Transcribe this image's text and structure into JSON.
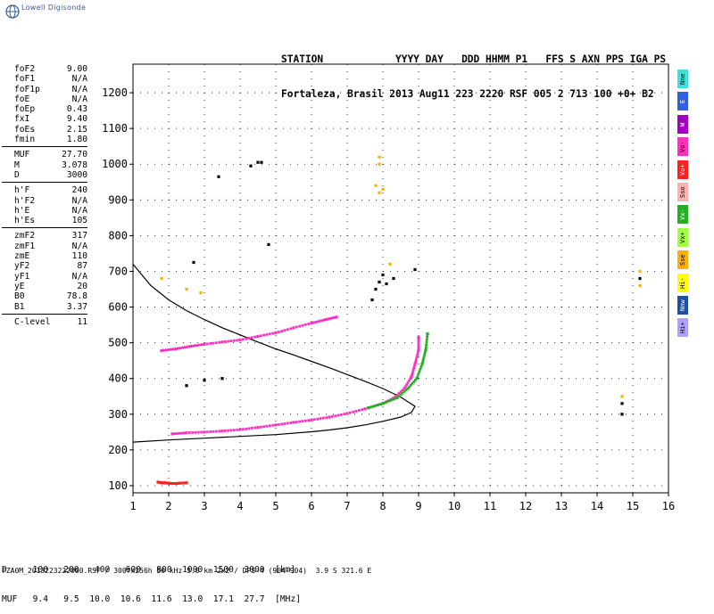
{
  "logo": {
    "brand": "Lowell Digisonde"
  },
  "header": {
    "line1": "STATION            YYYY DAY   DDD HHMM P1   FFS S AXN PPS IGA PS",
    "line2": "Fortaleza, Brasil 2013 Aug11 223 2220 RSF 005 2 713 100 +0+ B2"
  },
  "params": [
    {
      "name": "foF2",
      "value": "9.00"
    },
    {
      "name": "foF1",
      "value": "N/A"
    },
    {
      "name": "foF1p",
      "value": "N/A"
    },
    {
      "name": "foE",
      "value": "N/A"
    },
    {
      "name": "foEp",
      "value": "0.43"
    },
    {
      "name": "fxI",
      "value": "9.40"
    },
    {
      "name": "foEs",
      "value": "2.15"
    },
    {
      "name": "fmin",
      "value": "1.80"
    },
    {
      "sep": true
    },
    {
      "name": "MUF",
      "value": "27.70"
    },
    {
      "name": "M",
      "value": "3.078"
    },
    {
      "name": "D",
      "value": "3000"
    },
    {
      "sep": true
    },
    {
      "name": "h'F",
      "value": "240"
    },
    {
      "name": "h'F2",
      "value": "N/A"
    },
    {
      "name": "h'E",
      "value": "N/A"
    },
    {
      "name": "h'Es",
      "value": "105"
    },
    {
      "sep": true
    },
    {
      "name": "zmF2",
      "value": "317"
    },
    {
      "name": "zmF1",
      "value": "N/A"
    },
    {
      "name": "zmE",
      "value": "110"
    },
    {
      "name": "yF2",
      "value": "87"
    },
    {
      "name": "yF1",
      "value": "N/A"
    },
    {
      "name": "yE",
      "value": "20"
    },
    {
      "name": "B0",
      "value": "78.8"
    },
    {
      "name": "B1",
      "value": "3.37"
    },
    {
      "sep": true
    },
    {
      "name": "C-level",
      "value": "11"
    }
  ],
  "legend": [
    {
      "label": "Nne",
      "color": "#40e0e0"
    },
    {
      "label": "E",
      "color": "#3060e0"
    },
    {
      "label": "W",
      "color": "#a000c0"
    },
    {
      "label": "Vo-",
      "color": "#ff30c0"
    },
    {
      "label": "Vo+",
      "color": "#ff2020"
    },
    {
      "label": "Sso",
      "color": "#ffb0b0"
    },
    {
      "label": "Vx-",
      "color": "#20b020"
    },
    {
      "label": "Vx+",
      "color": "#a0ff40"
    },
    {
      "label": "Sse",
      "color": "#ffb000"
    },
    {
      "label": "Hi-",
      "color": "#ffff00"
    },
    {
      "label": "Nnw",
      "color": "#2050a0"
    },
    {
      "label": "Hi+",
      "color": "#b0a0ff"
    }
  ],
  "bottom_table": {
    "row1": "D     100   200   400   600   800  1000  1500  3000  [km]",
    "row2": "MUF   9.4   9.5  10.0  10.6  11.6  13.0  17.1  27.7  [MHz]"
  },
  "footer": "FZA0M_2013223222000.RSF / 300fx256h 50 kHz 5.0 km 2x2 / DPS-4 (904-904)  3.9 S 321.6 E",
  "chart_data": {
    "type": "scatter",
    "title": "",
    "xlabel": "",
    "ylabel": "",
    "xlim": [
      1,
      16
    ],
    "ylim": [
      80,
      1280
    ],
    "x_ticks": [
      1,
      2,
      3,
      4,
      5,
      6,
      7,
      8,
      9,
      10,
      11,
      12,
      13,
      14,
      15,
      16
    ],
    "y_ticks": [
      100,
      200,
      300,
      400,
      500,
      600,
      700,
      800,
      900,
      1000,
      1100,
      1200
    ],
    "grid": "dotted",
    "profile_curve": {
      "name": "",
      "color": "#000000",
      "points": [
        [
          1.0,
          720
        ],
        [
          1.5,
          660
        ],
        [
          2.0,
          620
        ],
        [
          2.5,
          590
        ],
        [
          3.0,
          565
        ],
        [
          3.5,
          542
        ],
        [
          4.0,
          522
        ],
        [
          4.5,
          502
        ],
        [
          5.0,
          483
        ],
        [
          5.5,
          466
        ],
        [
          6.0,
          448
        ],
        [
          6.5,
          430
        ],
        [
          7.0,
          411
        ],
        [
          7.5,
          392
        ],
        [
          8.0,
          372
        ],
        [
          8.5,
          348
        ],
        [
          8.9,
          322
        ],
        [
          8.8,
          305
        ],
        [
          8.5,
          292
        ],
        [
          8.0,
          280
        ],
        [
          7.5,
          270
        ],
        [
          7.0,
          262
        ],
        [
          6.5,
          256
        ],
        [
          6.0,
          251
        ],
        [
          5.0,
          243
        ],
        [
          4.0,
          238
        ],
        [
          3.0,
          233
        ],
        [
          2.0,
          228
        ],
        [
          1.0,
          222
        ]
      ]
    },
    "series": [
      {
        "name": "O-trace F2",
        "color": "#ff30c0",
        "points": [
          [
            2.1,
            245
          ],
          [
            2.5,
            248
          ],
          [
            3.0,
            250
          ],
          [
            3.5,
            253
          ],
          [
            4.0,
            257
          ],
          [
            4.5,
            263
          ],
          [
            5.0,
            270
          ],
          [
            5.5,
            277
          ],
          [
            6.0,
            284
          ],
          [
            6.5,
            292
          ],
          [
            7.0,
            302
          ],
          [
            7.5,
            315
          ],
          [
            8.0,
            330
          ],
          [
            8.3,
            345
          ],
          [
            8.6,
            372
          ],
          [
            8.8,
            405
          ],
          [
            8.9,
            440
          ],
          [
            9.0,
            480
          ],
          [
            9.0,
            515
          ]
        ]
      },
      {
        "name": "X-trace F2",
        "color": "#20b020",
        "points": [
          [
            7.6,
            318
          ],
          [
            8.0,
            330
          ],
          [
            8.4,
            346
          ],
          [
            8.7,
            372
          ],
          [
            8.95,
            400
          ],
          [
            9.1,
            440
          ],
          [
            9.2,
            480
          ],
          [
            9.25,
            525
          ]
        ]
      },
      {
        "name": "O-trace 2F",
        "color": "#ff30c0",
        "points": [
          [
            1.8,
            478
          ],
          [
            2.2,
            483
          ],
          [
            2.6,
            490
          ],
          [
            3.0,
            496
          ],
          [
            3.5,
            502
          ],
          [
            4.0,
            508
          ],
          [
            4.5,
            518
          ],
          [
            5.0,
            528
          ],
          [
            5.5,
            542
          ],
          [
            6.0,
            555
          ],
          [
            6.4,
            565
          ],
          [
            6.7,
            572
          ]
        ]
      },
      {
        "name": "Es",
        "color": "#ff2020",
        "points": [
          [
            1.7,
            110
          ],
          [
            1.8,
            108
          ],
          [
            1.9,
            108
          ],
          [
            2.0,
            107
          ],
          [
            2.1,
            106
          ],
          [
            2.2,
            106
          ],
          [
            2.3,
            107
          ],
          [
            2.5,
            108
          ]
        ]
      },
      {
        "name": "Scatter",
        "color": "#000000",
        "points": [
          [
            2.5,
            380
          ],
          [
            3.0,
            395
          ],
          [
            3.5,
            400
          ],
          [
            2.7,
            725
          ],
          [
            3.4,
            965
          ],
          [
            4.3,
            995
          ],
          [
            4.5,
            1005
          ],
          [
            4.6,
            1005
          ],
          [
            4.8,
            775
          ],
          [
            7.8,
            650
          ],
          [
            7.9,
            670
          ],
          [
            8.1,
            665
          ],
          [
            8.3,
            680
          ],
          [
            8.9,
            705
          ],
          [
            8.0,
            690
          ],
          [
            7.7,
            620
          ],
          [
            14.7,
            300
          ],
          [
            14.7,
            330
          ],
          [
            15.2,
            680
          ]
        ]
      },
      {
        "name": "Faint",
        "color": "#ffb000",
        "points": [
          [
            7.8,
            940
          ],
          [
            7.9,
            920
          ],
          [
            8.0,
            930
          ],
          [
            7.9,
            1000
          ],
          [
            7.9,
            1020
          ],
          [
            8.2,
            720
          ],
          [
            14.7,
            350
          ],
          [
            15.2,
            700
          ],
          [
            15.2,
            660
          ],
          [
            2.9,
            640
          ],
          [
            1.8,
            680
          ],
          [
            2.5,
            650
          ]
        ]
      }
    ]
  }
}
